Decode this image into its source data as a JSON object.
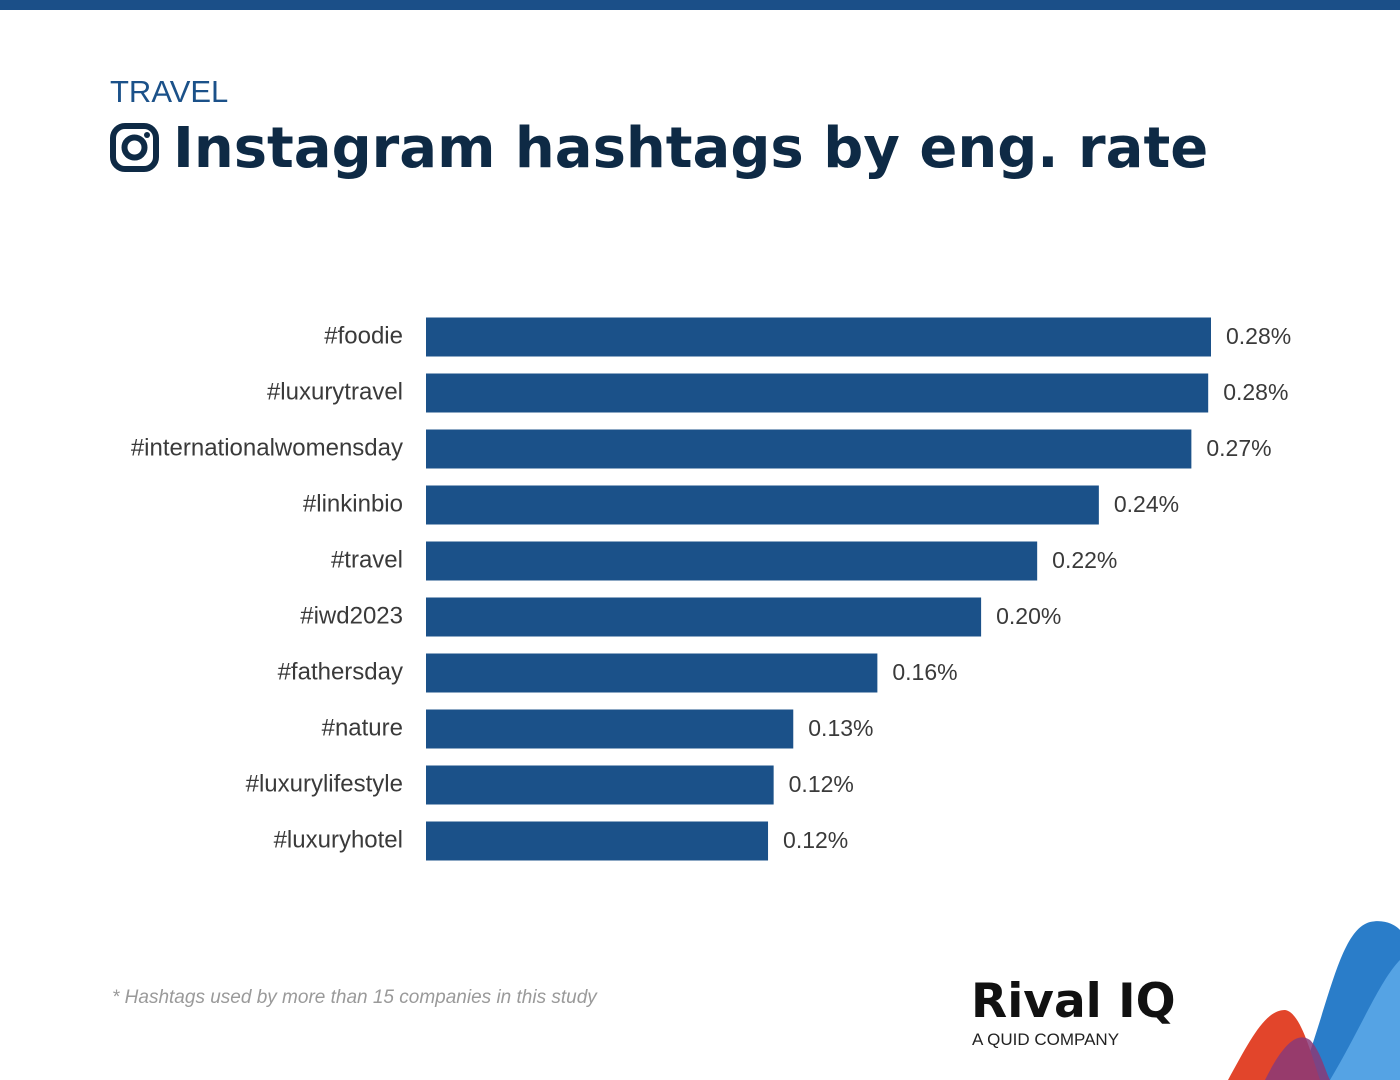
{
  "chart_data": {
    "type": "bar",
    "orientation": "horizontal",
    "subtitle": "TRAVEL",
    "title": "Instagram hashtags by eng. rate",
    "categories": [
      "#foodie",
      "#luxurytravel",
      "#internationalwomensday",
      "#linkinbio",
      "#travel",
      "#iwd2023",
      "#fathersday",
      "#nature",
      "#luxurylifestyle",
      "#luxuryhotel"
    ],
    "values": [
      0.28,
      0.279,
      0.273,
      0.24,
      0.218,
      0.198,
      0.161,
      0.131,
      0.124,
      0.122
    ],
    "value_labels": [
      "0.28%",
      "0.28%",
      "0.27%",
      "0.24%",
      "0.22%",
      "0.20%",
      "0.16%",
      "0.13%",
      "0.12%",
      "0.12%"
    ],
    "color": "#1b5189",
    "note": "* Hashtags used by more than 15 companies in this study"
  },
  "brand": {
    "name": "Rival IQ",
    "tagline": "A QUID COMPANY"
  }
}
